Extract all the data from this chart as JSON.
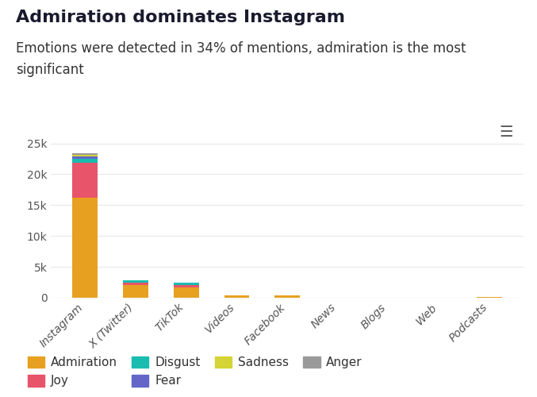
{
  "title": "Admiration dominates Instagram",
  "subtitle": "Emotions were detected in 34% of mentions, admiration is the most\nsignificant",
  "categories": [
    "Instagram",
    "X (Twitter)",
    "TikTok",
    "Videos",
    "Facebook",
    "News",
    "Blogs",
    "Web",
    "Podcasts"
  ],
  "emotions": {
    "Admiration": {
      "color": "#E8A020",
      "values": [
        16200,
        2000,
        1700,
        450,
        380,
        0,
        0,
        0,
        70
      ]
    },
    "Joy": {
      "color": "#E8546A",
      "values": [
        5600,
        500,
        400,
        0,
        0,
        0,
        0,
        0,
        0
      ]
    },
    "Disgust": {
      "color": "#1ABCB0",
      "values": [
        650,
        380,
        320,
        0,
        0,
        0,
        0,
        0,
        0
      ]
    },
    "Fear": {
      "color": "#6366C8",
      "values": [
        450,
        0,
        0,
        0,
        0,
        0,
        0,
        0,
        0
      ]
    },
    "Sadness": {
      "color": "#D4D437",
      "values": [
        280,
        0,
        0,
        0,
        0,
        0,
        0,
        0,
        0
      ]
    },
    "Anger": {
      "color": "#999999",
      "values": [
        180,
        0,
        0,
        0,
        0,
        0,
        0,
        0,
        0
      ]
    }
  },
  "ylim": [
    0,
    27000
  ],
  "yticks": [
    0,
    5000,
    10000,
    15000,
    20000,
    25000
  ],
  "ytick_labels": [
    "0",
    "5k",
    "10k",
    "15k",
    "20k",
    "25k"
  ],
  "bg_color": "#ffffff",
  "grid_color": "#e8e8e8",
  "title_fontsize": 16,
  "subtitle_fontsize": 12,
  "axis_fontsize": 10,
  "legend_fontsize": 11
}
